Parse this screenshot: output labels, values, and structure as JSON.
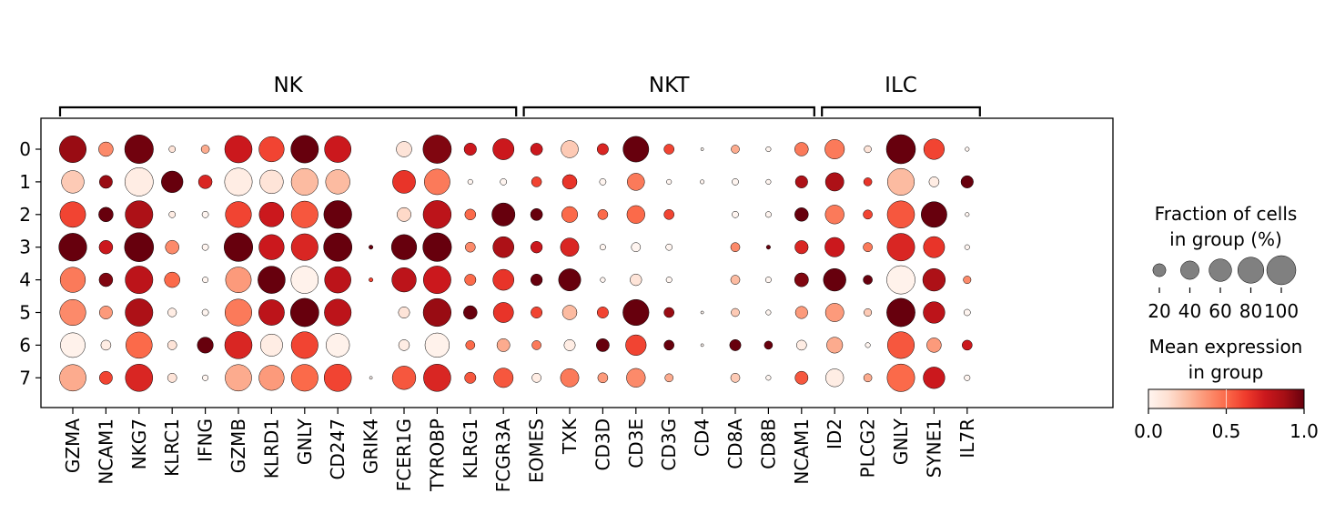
{
  "chart_data": {
    "type": "dotplot",
    "title": "",
    "rows": [
      "0",
      "1",
      "2",
      "3",
      "4",
      "5",
      "6",
      "7"
    ],
    "genes": [
      "GZMA",
      "NCAM1",
      "NKG7",
      "KLRC1",
      "IFNG",
      "GZMB",
      "KLRD1",
      "GNLY",
      "CD247",
      "GRIK4",
      "FCER1G",
      "TYROBP",
      "KLRG1",
      "FCGR3A",
      "EOMES",
      "TXK",
      "CD3D",
      "CD3E",
      "CD3G",
      "CD4",
      "CD8A",
      "CD8B",
      "NCAM1",
      "ID2",
      "PLCG2",
      "GNLY",
      "SYNE1",
      "IL7R"
    ],
    "groups": [
      {
        "label": "NK",
        "start": 0,
        "end": 13
      },
      {
        "label": "NKT",
        "start": 14,
        "end": 22
      },
      {
        "label": "ILC",
        "start": 23,
        "end": 27
      }
    ],
    "fraction_pct": [
      [
        85,
        25,
        97,
        5,
        8,
        88,
        75,
        90,
        83,
        0,
        28,
        95,
        18,
        53,
        17,
        35,
        15,
        78,
        12,
        1,
        8,
        3,
        22,
        45,
        6,
        100,
        50,
        2
      ],
      [
        60,
        20,
        95,
        55,
        22,
        90,
        65,
        85,
        70,
        0,
        62,
        78,
        3,
        5,
        12,
        25,
        5,
        35,
        3,
        2,
        5,
        3,
        18,
        40,
        8,
        85,
        12,
        18
      ],
      [
        78,
        25,
        90,
        5,
        5,
        80,
        72,
        85,
        92,
        0,
        23,
        93,
        14,
        63,
        17,
        30,
        12,
        38,
        12,
        0,
        5,
        4,
        22,
        42,
        10,
        88,
        78,
        2
      ],
      [
        92,
        22,
        100,
        22,
        5,
        97,
        75,
        85,
        95,
        2,
        75,
        97,
        12,
        52,
        16,
        40,
        4,
        10,
        5,
        0,
        10,
        2,
        21,
        45,
        10,
        90,
        53,
        3
      ],
      [
        75,
        22,
        90,
        28,
        4,
        78,
        88,
        88,
        82,
        2,
        70,
        90,
        15,
        52,
        16,
        58,
        3,
        16,
        4,
        0,
        10,
        4,
        23,
        60,
        10,
        95,
        60,
        7
      ],
      [
        80,
        20,
        90,
        9,
        5,
        85,
        78,
        95,
        85,
        0,
        15,
        92,
        22,
        48,
        15,
        25,
        15,
        80,
        12,
        1,
        8,
        3,
        18,
        40,
        7,
        95,
        55,
        5
      ],
      [
        72,
        12,
        82,
        10,
        30,
        88,
        58,
        85,
        65,
        0,
        14,
        70,
        10,
        20,
        10,
        15,
        20,
        50,
        12,
        1,
        15,
        8,
        12,
        30,
        3,
        85,
        25,
        12
      ],
      [
        83,
        20,
        88,
        10,
        4,
        83,
        75,
        85,
        88,
        1,
        65,
        88,
        15,
        45,
        10,
        40,
        12,
        42,
        8,
        0,
        10,
        3,
        20,
        38,
        8,
        90,
        55,
        4
      ]
    ],
    "mean_expression": [
      [
        0.9,
        0.4,
        0.98,
        0.1,
        0.3,
        0.75,
        0.6,
        1.0,
        0.75,
        0,
        0.1,
        0.95,
        0.75,
        0.75,
        0.75,
        0.2,
        0.7,
        1.0,
        0.6,
        0,
        0.3,
        0,
        0.45,
        0.45,
        0.1,
        1.0,
        0.6,
        0
      ],
      [
        0.2,
        0.9,
        0.05,
        1.0,
        0.7,
        0.05,
        0.1,
        0.25,
        0.25,
        0,
        0.65,
        0.45,
        0,
        0,
        0.6,
        0.65,
        0,
        0.45,
        0,
        0,
        0,
        0,
        0.85,
        0.85,
        0.65,
        0.25,
        0.05,
        1.0
      ],
      [
        0.6,
        1.0,
        0.85,
        0.05,
        0,
        0.6,
        0.75,
        0.55,
        1.0,
        0,
        0.15,
        0.8,
        0.5,
        1.0,
        1.0,
        0.5,
        0.5,
        0.5,
        0.6,
        0,
        0,
        0,
        1.0,
        0.45,
        0.6,
        0.55,
        1.0,
        0
      ],
      [
        1.0,
        0.75,
        1.0,
        0.4,
        0,
        1.0,
        0.75,
        0.7,
        1.0,
        1.0,
        1.0,
        1.0,
        0.4,
        0.85,
        0.75,
        0.7,
        0,
        0,
        0,
        0,
        0.4,
        1.0,
        0.7,
        0.75,
        0.45,
        0.7,
        0.65,
        0
      ],
      [
        0.45,
        0.95,
        0.8,
        0.5,
        0,
        0.35,
        1.0,
        0.02,
        0.8,
        0.6,
        0.8,
        0.75,
        0.5,
        0.65,
        1.0,
        1.0,
        0,
        0.1,
        0,
        0,
        0.25,
        0,
        0.95,
        1.0,
        1.0,
        0.02,
        0.85,
        0.4
      ],
      [
        0.4,
        0.35,
        0.85,
        0.05,
        0,
        0.45,
        0.8,
        1.0,
        0.8,
        0,
        0.1,
        0.9,
        1.0,
        0.65,
        0.6,
        0.25,
        0.6,
        1.0,
        0.9,
        0,
        0.2,
        0,
        0.35,
        0.35,
        0.2,
        1.0,
        0.8,
        0
      ],
      [
        0.02,
        0.05,
        0.5,
        0.1,
        1.0,
        0.7,
        0.05,
        0.6,
        0.02,
        0,
        0.05,
        0.02,
        0.5,
        0.3,
        0.45,
        0.05,
        1.0,
        0.6,
        1.0,
        0,
        1.0,
        1.0,
        0.05,
        0.3,
        0,
        0.55,
        0.35,
        0.75
      ],
      [
        0.3,
        0.6,
        0.7,
        0.1,
        0,
        0.3,
        0.35,
        0.5,
        0.6,
        0,
        0.55,
        0.7,
        0.55,
        0.55,
        0.05,
        0.45,
        0.35,
        0.4,
        0.3,
        0,
        0.2,
        0,
        0.55,
        0.05,
        0.3,
        0.5,
        0.75,
        0
      ]
    ],
    "size_legend": {
      "title": "Fraction of cells\nin group (%)",
      "values": [
        20,
        40,
        60,
        80,
        100
      ],
      "labels": [
        "20",
        "40",
        "60",
        "80",
        "100"
      ]
    },
    "color_legend": {
      "title": "Mean expression\nin group",
      "range": [
        0.0,
        1.0
      ],
      "ticks": [
        0.0,
        0.5,
        1.0
      ],
      "tick_labels": [
        "0.0",
        "0.5",
        "1.0"
      ],
      "colormap": "Reds",
      "stops": [
        "#fff5f0",
        "#fee0d2",
        "#fcbba1",
        "#fc9272",
        "#fb6a4a",
        "#ef3b2c",
        "#cb181d",
        "#a50f15",
        "#67000d"
      ]
    },
    "grid": false
  }
}
